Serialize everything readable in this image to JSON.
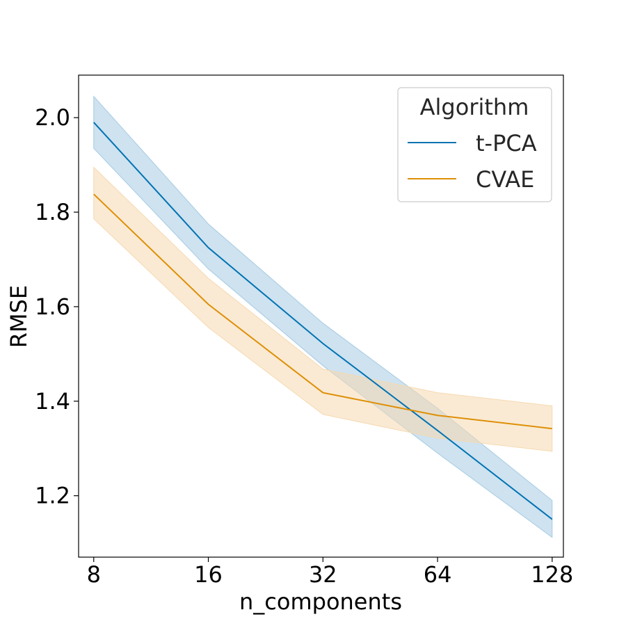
{
  "chart_data": {
    "type": "line",
    "title": "",
    "xlabel": "n_components",
    "ylabel": "RMSE",
    "x_scale": "log2",
    "x": [
      8,
      16,
      32,
      64,
      128
    ],
    "x_tick_labels": [
      "8",
      "16",
      "32",
      "64",
      "128"
    ],
    "xlim": [
      7.3,
      137
    ],
    "ylim": [
      1.07,
      2.09
    ],
    "y_ticks": [
      1.2,
      1.4,
      1.6,
      1.8,
      2.0
    ],
    "y_tick_labels": [
      "1.2",
      "1.4",
      "1.6",
      "1.8",
      "2.0"
    ],
    "grid": false,
    "legend": {
      "title": "Algorithm",
      "position": "top-right"
    },
    "series": [
      {
        "name": "t-PCA",
        "color": "#0173b2",
        "band_color": "#a6cbe3",
        "values": [
          1.99,
          1.725,
          1.522,
          1.338,
          1.15
        ],
        "ci_lower": [
          1.935,
          1.68,
          1.475,
          1.29,
          1.112
        ],
        "ci_upper": [
          2.045,
          1.775,
          1.565,
          1.385,
          1.19
        ]
      },
      {
        "name": "CVAE",
        "color": "#de8f05",
        "band_color": "#f6d9b0",
        "values": [
          1.838,
          1.605,
          1.418,
          1.37,
          1.342
        ],
        "ci_lower": [
          1.786,
          1.556,
          1.372,
          1.322,
          1.294
        ],
        "ci_upper": [
          1.895,
          1.66,
          1.468,
          1.418,
          1.39
        ]
      }
    ]
  }
}
